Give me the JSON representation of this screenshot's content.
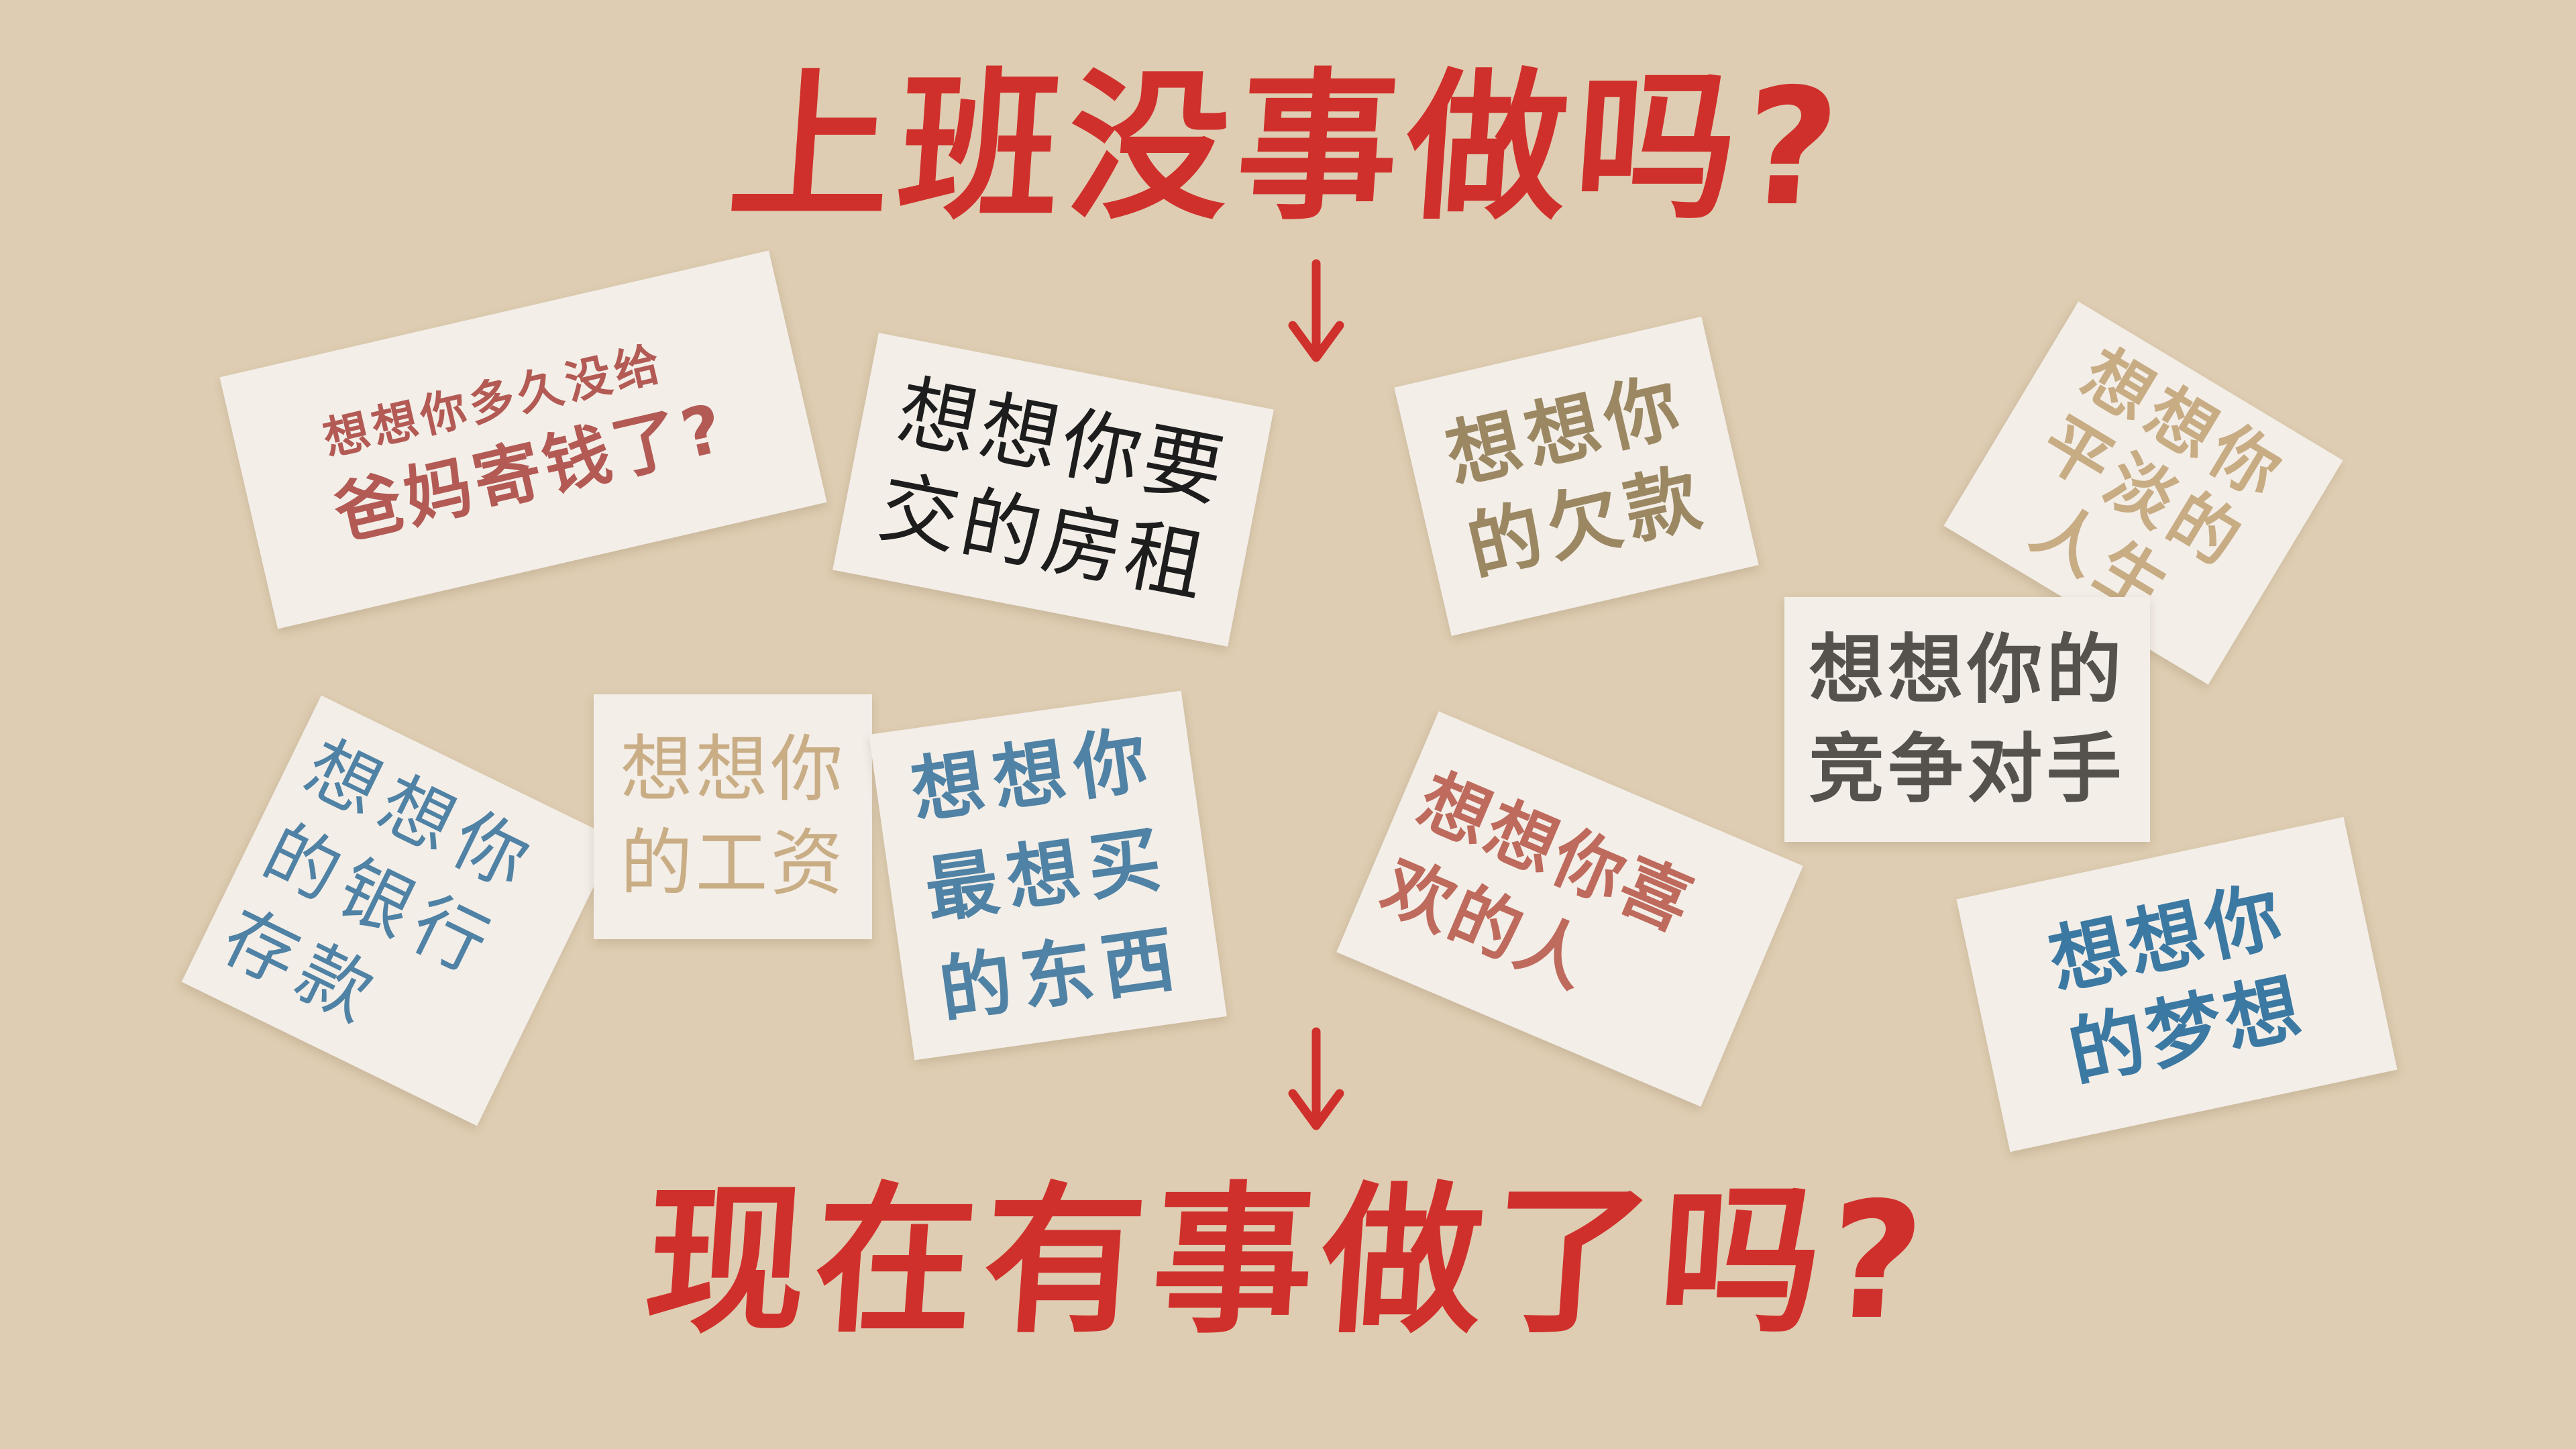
{
  "headline": {
    "top": "上班没事做吗?",
    "bottom": "现在有事做了吗?"
  },
  "colors": {
    "background": "#decdb2",
    "headline": "#d0302c",
    "card": "#f3eee8"
  },
  "arrows": [
    "down-arrow-icon",
    "down-arrow-icon"
  ],
  "cards": [
    {
      "lines": [
        "想想你多久没给",
        "爸妈寄钱了?"
      ]
    },
    {
      "lines": [
        "想想你要",
        "交的房租"
      ]
    },
    {
      "lines": [
        "想想你",
        "的欠款"
      ]
    },
    {
      "lines": [
        "想想你",
        "平淡的",
        "人生"
      ]
    },
    {
      "lines": [
        "想想你的",
        "竞争对手"
      ]
    },
    {
      "lines": [
        "想想你",
        "的银行",
        "存款"
      ]
    },
    {
      "lines": [
        "想想你",
        "的工资"
      ]
    },
    {
      "lines": [
        "想想你",
        "最想买",
        "的东西"
      ]
    },
    {
      "lines": [
        "想想你喜",
        "欢的人"
      ]
    },
    {
      "lines": [
        "想想你",
        "的梦想"
      ]
    }
  ]
}
